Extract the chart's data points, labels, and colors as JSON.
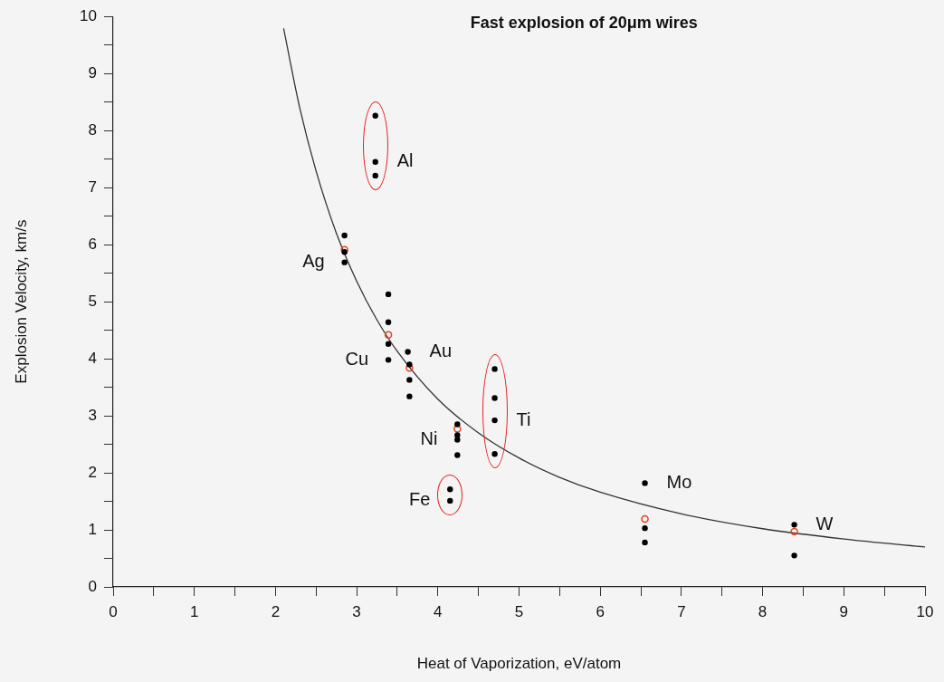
{
  "chart_data": {
    "type": "scatter",
    "title": "Fast explosion of 20μm wires",
    "xlabel": "Heat of Vaporization, eV/atom",
    "ylabel": "Explosion Velocity, km/s",
    "xlim": [
      0,
      10
    ],
    "ylim": [
      0,
      10
    ],
    "xticks": [
      0,
      {
        "value": 0.5,
        "label": null
      },
      1,
      {
        "value": 1.5,
        "label": null
      },
      2,
      {
        "value": 2.5,
        "label": null
      },
      3,
      {
        "value": 3.5,
        "label": null
      },
      4,
      {
        "value": 4.5,
        "label": null
      },
      5,
      {
        "value": 5.5,
        "label": null
      },
      6,
      {
        "value": 6.5,
        "label": null
      },
      7,
      {
        "value": 7.5,
        "label": null
      },
      8,
      {
        "value": 8.5,
        "label": null
      },
      9,
      {
        "value": 9.5,
        "label": null
      },
      10
    ],
    "yticks": [
      0,
      {
        "value": 0.5,
        "label": null
      },
      1,
      {
        "value": 1.5,
        "label": null
      },
      2,
      {
        "value": 2.5,
        "label": null
      },
      3,
      {
        "value": 3.5,
        "label": null
      },
      4,
      {
        "value": 4.5,
        "label": null
      },
      5,
      {
        "value": 5.5,
        "label": null
      },
      6,
      {
        "value": 6.5,
        "label": null
      },
      7,
      {
        "value": 7.5,
        "label": null
      },
      8,
      {
        "value": 8.5,
        "label": null
      },
      9,
      {
        "value": 9.5,
        "label": null
      },
      10
    ],
    "grid": false,
    "legend": false,
    "marker": "circle",
    "series": [
      {
        "color": "#000000",
        "x": [
          2.85,
          2.85,
          2.85,
          3.39,
          3.39,
          3.39,
          3.39,
          3.63,
          3.65,
          3.65,
          3.65,
          4.24,
          4.24,
          4.24,
          4.24,
          6.55,
          6.55,
          6.55,
          8.39,
          8.39
        ],
        "values": [
          6.16,
          5.87,
          5.69,
          5.13,
          4.64,
          4.26,
          3.98,
          4.12,
          3.9,
          3.63,
          3.34,
          2.85,
          2.66,
          2.58,
          2.31,
          1.82,
          1.03,
          0.78,
          1.09,
          0.55
        ]
      },
      {
        "color": "#000000",
        "x": [
          3.23,
          3.23,
          3.23,
          4.7,
          4.7,
          4.7,
          4.7,
          4.15,
          4.15
        ],
        "values": [
          8.26,
          7.45,
          7.21,
          3.82,
          3.31,
          2.92,
          2.33,
          1.71,
          1.51
        ]
      },
      {
        "color": "#e8401c",
        "x": [
          2.85,
          3.39,
          3.65,
          4.24,
          6.55,
          8.39
        ],
        "values": [
          5.91,
          4.42,
          3.84,
          2.77,
          1.19,
          0.97
        ]
      },
      {
        "type": "line",
        "marker": "none",
        "color": "#333333",
        "x": [
          2.1,
          2.3,
          2.5,
          2.75,
          3,
          3.25,
          3.5,
          4,
          4.5,
          5,
          5.5,
          6,
          7,
          8,
          9,
          10
        ],
        "values": [
          9.79,
          8.39,
          7.29,
          6.2,
          5.36,
          4.68,
          4.13,
          3.29,
          2.7,
          2.26,
          1.92,
          1.66,
          1.28,
          1.02,
          0.84,
          0.7
        ]
      }
    ],
    "annotations": [
      {
        "text": "Al",
        "x": 3.23,
        "y": 7.45
      },
      {
        "text": "Ag",
        "x": 2.85,
        "y": 5.69
      },
      {
        "text": "Cu",
        "x": 3.39,
        "y": 3.98
      },
      {
        "text": "Au",
        "x": 3.63,
        "y": 4.12
      },
      {
        "text": "Ni",
        "x": 4.24,
        "y": 2.58
      },
      {
        "text": "Ti",
        "x": 4.7,
        "y": 2.92
      },
      {
        "text": "Fe",
        "x": 4.15,
        "y": 1.51
      },
      {
        "text": "Mo",
        "x": 6.55,
        "y": 1.82
      },
      {
        "text": "W",
        "x": 8.39,
        "y": 1.09
      }
    ]
  }
}
